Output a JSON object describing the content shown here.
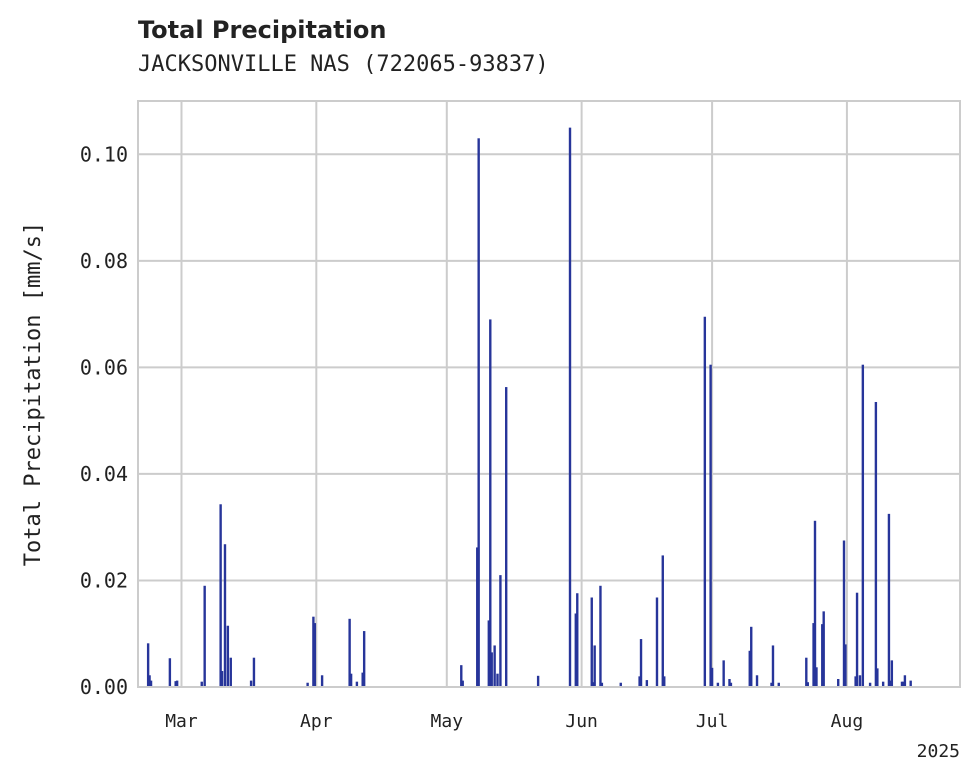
{
  "chart_data": {
    "type": "bar",
    "title": "Total Precipitation",
    "subtitle": "JACKSONVILLE NAS (722065-93837)",
    "ylabel": "Total Precipitation [mm/s]",
    "xlabel": "",
    "year_label": "2025",
    "ylim": [
      0,
      0.11
    ],
    "yticks": [
      0.0,
      0.02,
      0.04,
      0.06,
      0.08,
      0.1
    ],
    "ytick_labels": [
      "0.00",
      "0.02",
      "0.04",
      "0.06",
      "0.08",
      "0.10"
    ],
    "xlim": [
      "2025-02-19",
      "2025-08-27"
    ],
    "xticks": [
      {
        "date": "2025-03-01",
        "label": "Mar"
      },
      {
        "date": "2025-04-01",
        "label": "Apr"
      },
      {
        "date": "2025-05-01",
        "label": "May"
      },
      {
        "date": "2025-06-01",
        "label": "Jun"
      },
      {
        "date": "2025-07-01",
        "label": "Jul"
      },
      {
        "date": "2025-08-01",
        "label": "Aug"
      }
    ],
    "grid": true,
    "bar_color": "#27359a",
    "series": [
      {
        "points": [
          {
            "x": "2025-02-21",
            "y": 0.0082
          },
          {
            "x": "2025-02-21",
            "y": 0.0022
          },
          {
            "x": "2025-02-22",
            "y": 0.0012
          },
          {
            "x": "2025-02-26",
            "y": 0.0054
          },
          {
            "x": "2025-02-27",
            "y": 0.0011
          },
          {
            "x": "2025-02-28",
            "y": 0.0012
          },
          {
            "x": "2025-03-06",
            "y": 0.019
          },
          {
            "x": "2025-03-05",
            "y": 0.001
          },
          {
            "x": "2025-03-10",
            "y": 0.0343
          },
          {
            "x": "2025-03-10",
            "y": 0.003
          },
          {
            "x": "2025-03-11",
            "y": 0.0115
          },
          {
            "x": "2025-03-11",
            "y": 0.0268
          },
          {
            "x": "2025-03-12",
            "y": 0.0055
          },
          {
            "x": "2025-03-17",
            "y": 0.0055
          },
          {
            "x": "2025-03-17",
            "y": 0.0012
          },
          {
            "x": "2025-03-31",
            "y": 0.0132
          },
          {
            "x": "2025-03-31",
            "y": 0.012
          },
          {
            "x": "2025-03-30",
            "y": 0.0008
          },
          {
            "x": "2025-04-02",
            "y": 0.0022
          },
          {
            "x": "2025-04-08",
            "y": 0.0128
          },
          {
            "x": "2025-04-09",
            "y": 0.0025
          },
          {
            "x": "2025-04-10",
            "y": 0.001
          },
          {
            "x": "2025-04-11",
            "y": 0.0027
          },
          {
            "x": "2025-04-12",
            "y": 0.0105
          },
          {
            "x": "2025-05-04",
            "y": 0.0041
          },
          {
            "x": "2025-05-04",
            "y": 0.0012
          },
          {
            "x": "2025-05-08",
            "y": 0.0262
          },
          {
            "x": "2025-05-08",
            "y": 0.103
          },
          {
            "x": "2025-05-10",
            "y": 0.0125
          },
          {
            "x": "2025-05-11",
            "y": 0.069
          },
          {
            "x": "2025-05-11",
            "y": 0.0065
          },
          {
            "x": "2025-05-12",
            "y": 0.0025
          },
          {
            "x": "2025-05-12",
            "y": 0.0078
          },
          {
            "x": "2025-05-13",
            "y": 0.021
          },
          {
            "x": "2025-05-14",
            "y": 0.0563
          },
          {
            "x": "2025-05-22",
            "y": 0.0021
          },
          {
            "x": "2025-05-29",
            "y": 0.105
          },
          {
            "x": "2025-05-30",
            "y": 0.0138
          },
          {
            "x": "2025-05-31",
            "y": 0.0176
          },
          {
            "x": "2025-06-03",
            "y": 0.0168
          },
          {
            "x": "2025-06-03",
            "y": 0.0009
          },
          {
            "x": "2025-06-04",
            "y": 0.0078
          },
          {
            "x": "2025-06-05",
            "y": 0.019
          },
          {
            "x": "2025-06-05",
            "y": 0.0008
          },
          {
            "x": "2025-06-10",
            "y": 0.0008
          },
          {
            "x": "2025-06-14",
            "y": 0.002
          },
          {
            "x": "2025-06-14",
            "y": 0.009
          },
          {
            "x": "2025-06-16",
            "y": 0.0013
          },
          {
            "x": "2025-06-18",
            "y": 0.0168
          },
          {
            "x": "2025-06-19",
            "y": 0.0247
          },
          {
            "x": "2025-06-20",
            "y": 0.002
          },
          {
            "x": "2025-06-29",
            "y": 0.0695
          },
          {
            "x": "2025-06-30",
            "y": 0.0605
          },
          {
            "x": "2025-07-01",
            "y": 0.0036
          },
          {
            "x": "2025-07-02",
            "y": 0.0008
          },
          {
            "x": "2025-07-03",
            "y": 0.005
          },
          {
            "x": "2025-07-05",
            "y": 0.0015
          },
          {
            "x": "2025-07-05",
            "y": 0.0008
          },
          {
            "x": "2025-07-09",
            "y": 0.0068
          },
          {
            "x": "2025-07-10",
            "y": 0.0113
          },
          {
            "x": "2025-07-11",
            "y": 0.0022
          },
          {
            "x": "2025-07-14",
            "y": 0.0008
          },
          {
            "x": "2025-07-15",
            "y": 0.0078
          },
          {
            "x": "2025-07-16",
            "y": 0.0008
          },
          {
            "x": "2025-07-22",
            "y": 0.0055
          },
          {
            "x": "2025-07-23",
            "y": 0.0009
          },
          {
            "x": "2025-07-24",
            "y": 0.012
          },
          {
            "x": "2025-07-24",
            "y": 0.0312
          },
          {
            "x": "2025-07-25",
            "y": 0.0037
          },
          {
            "x": "2025-07-26",
            "y": 0.0118
          },
          {
            "x": "2025-07-26",
            "y": 0.0142
          },
          {
            "x": "2025-07-30",
            "y": 0.0015
          },
          {
            "x": "2025-07-31",
            "y": 0.0275
          },
          {
            "x": "2025-07-31",
            "y": 0.008
          },
          {
            "x": "2025-08-03",
            "y": 0.002
          },
          {
            "x": "2025-08-03",
            "y": 0.0177
          },
          {
            "x": "2025-08-04",
            "y": 0.0605
          },
          {
            "x": "2025-08-04",
            "y": 0.0022
          },
          {
            "x": "2025-08-06",
            "y": 0.0008
          },
          {
            "x": "2025-08-07",
            "y": 0.0535
          },
          {
            "x": "2025-08-08",
            "y": 0.0035
          },
          {
            "x": "2025-08-09",
            "y": 0.001
          },
          {
            "x": "2025-08-10",
            "y": 0.0325
          },
          {
            "x": "2025-08-11",
            "y": 0.0012
          },
          {
            "x": "2025-08-11",
            "y": 0.005
          },
          {
            "x": "2025-08-13",
            "y": 0.001
          },
          {
            "x": "2025-08-14",
            "y": 0.001
          },
          {
            "x": "2025-08-14",
            "y": 0.0022
          },
          {
            "x": "2025-08-15",
            "y": 0.0012
          }
        ]
      }
    ]
  }
}
